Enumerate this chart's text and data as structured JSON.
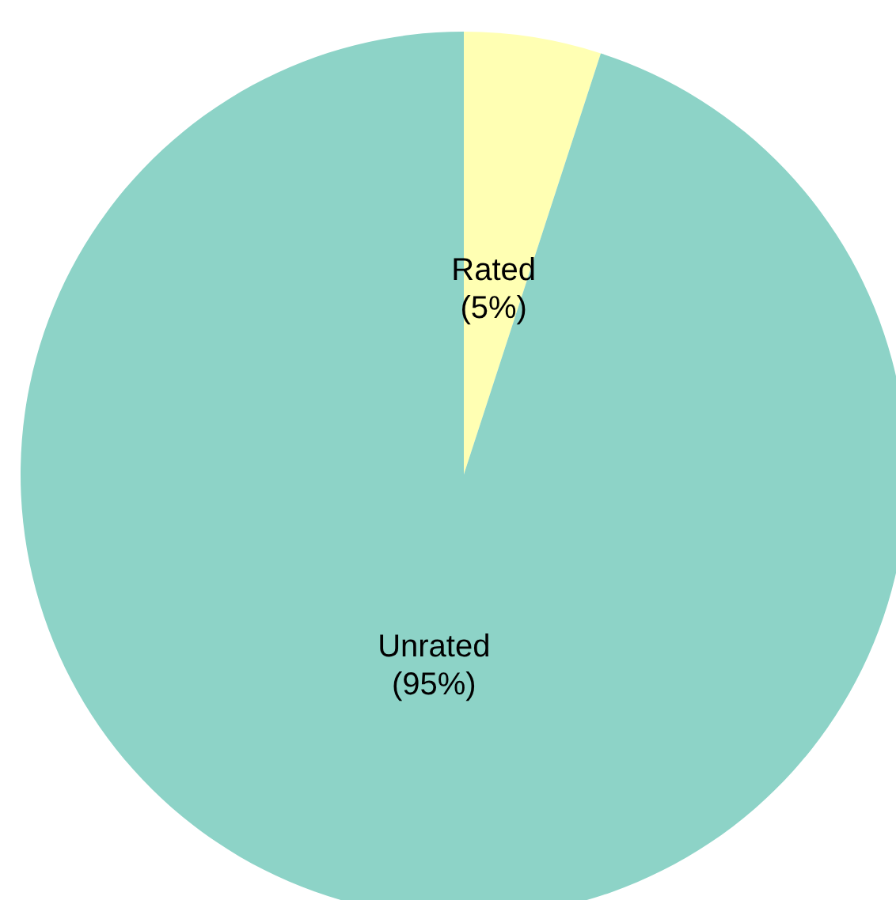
{
  "chart_data": {
    "type": "pie",
    "categories": [
      "Rated",
      "Unrated"
    ],
    "values": [
      5,
      95
    ],
    "colors": [
      "#ffffb3",
      "#8dd3c7"
    ],
    "value_labels": [
      "(5%)",
      "(95%)"
    ]
  }
}
